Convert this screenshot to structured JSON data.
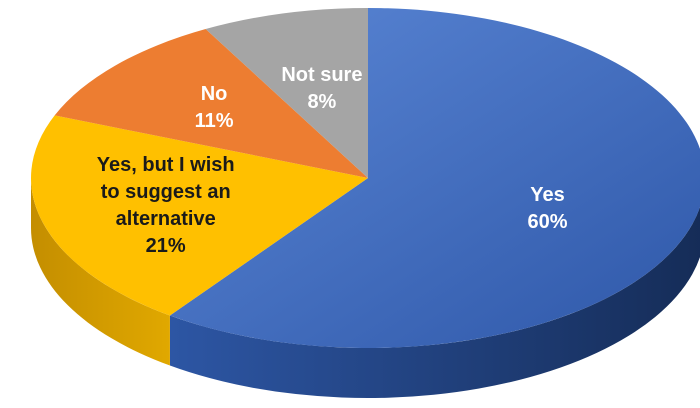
{
  "chart_data": {
    "type": "pie",
    "style": "3d",
    "title": "",
    "slices": [
      {
        "label": [
          "Yes"
        ],
        "value": 60,
        "value_label": "60%",
        "color": "#4472C4",
        "side_color": "#1F3F7A",
        "label_color": "#ffffff"
      },
      {
        "label": [
          "Yes, but I wish",
          "to suggest an",
          "alternative"
        ],
        "value": 21,
        "value_label": "21%",
        "color": "#FFC000",
        "side_color": "#C79200",
        "label_color": "#1a1a1a"
      },
      {
        "label": [
          "No"
        ],
        "value": 11,
        "value_label": "11%",
        "color": "#ED7D31",
        "side_color": "#B55A1C",
        "label_color": "#ffffff"
      },
      {
        "label": [
          "Not sure"
        ],
        "value": 8,
        "value_label": "8%",
        "color": "#A5A5A5",
        "side_color": "#7A7A7A",
        "label_color": "#ffffff"
      }
    ]
  }
}
